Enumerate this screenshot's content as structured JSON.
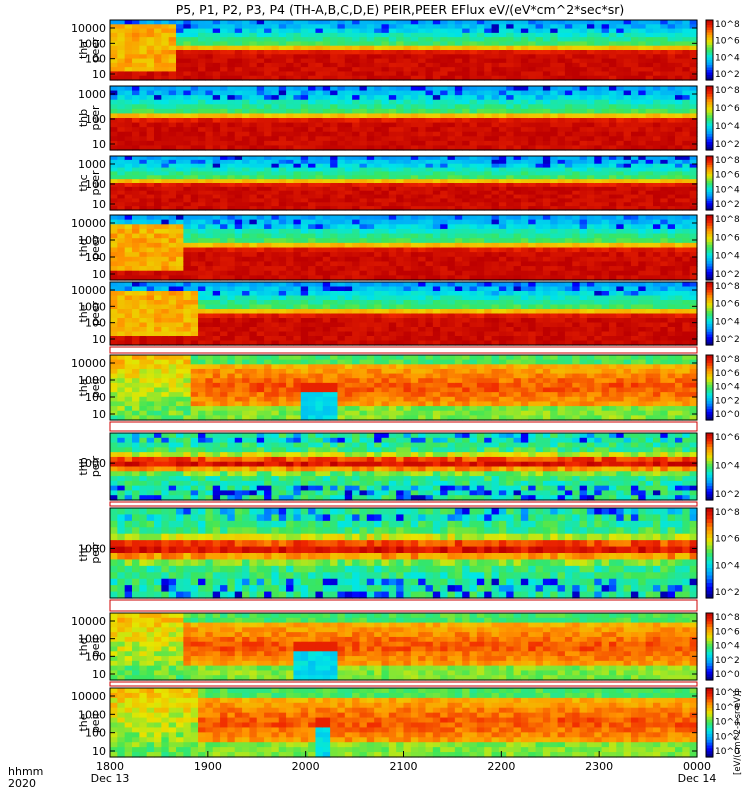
{
  "chart_data": {
    "type": "heatmap",
    "title": "P5, P1, P2, P3, P4 (TH-A,B,C,D,E) PEIR,PEER EFlux eV/(eV*cm^2*sec*sr)",
    "colorbar_label": "[eV/(cm^2-s-sr-eV)]",
    "x_axis": {
      "range_minutes": [
        0,
        360
      ],
      "ticks": [
        {
          "minute": 0,
          "label": "1800",
          "date": "Dec 13"
        },
        {
          "minute": 60,
          "label": "1900"
        },
        {
          "minute": 120,
          "label": "2000"
        },
        {
          "minute": 180,
          "label": "2100"
        },
        {
          "minute": 240,
          "label": "2200"
        },
        {
          "minute": 300,
          "label": "2300"
        },
        {
          "minute": 360,
          "label": "0000",
          "date": "Dec 14"
        }
      ],
      "corner_label": "hhmm",
      "corner_year": "2020"
    },
    "panels": [
      {
        "probe": "tha",
        "product": "peer",
        "label_a": "tha",
        "label_b": "peer",
        "kind": "peer",
        "yticks": [
          "10",
          "100",
          "1000",
          "10000"
        ],
        "cbar_ticks": [
          "10^8",
          "10^6",
          "10^4",
          "10^2"
        ],
        "events": [
          {
            "t0": 0,
            "t1": 40,
            "level": 0.9
          }
        ],
        "dip": null
      },
      {
        "probe": "thb",
        "product": "peer",
        "label_a": "thb",
        "label_b": "peer",
        "kind": "peer",
        "yticks": [
          "10",
          "100",
          "1000"
        ],
        "cbar_ticks": [
          "10^8",
          "10^6",
          "10^4",
          "10^2"
        ],
        "events": [],
        "dip": null
      },
      {
        "probe": "thc",
        "product": "peer",
        "label_a": "thc",
        "label_b": "peer",
        "kind": "peer",
        "yticks": [
          "10",
          "100",
          "1000"
        ],
        "cbar_ticks": [
          "10^8",
          "10^6",
          "10^4",
          "10^2"
        ],
        "events": [],
        "dip": null
      },
      {
        "probe": "thd",
        "product": "peer",
        "label_a": "thd",
        "label_b": "peer",
        "kind": "peer",
        "yticks": [
          "10",
          "100",
          "1000",
          "10000"
        ],
        "cbar_ticks": [
          "10^8",
          "10^6",
          "10^4",
          "10^2"
        ],
        "events": [
          {
            "t0": 0,
            "t1": 45,
            "level": 0.85
          }
        ],
        "dip": null
      },
      {
        "probe": "the",
        "product": "peer",
        "label_a": "the",
        "label_b": "peer",
        "kind": "peer",
        "yticks": [
          "10",
          "100",
          "1000",
          "10000"
        ],
        "cbar_ticks": [
          "10^8",
          "10^6",
          "10^4",
          "10^2"
        ],
        "events": [
          {
            "t0": 0,
            "t1": 55,
            "level": 0.85
          }
        ],
        "dip": null
      },
      {
        "probe": "tha",
        "product": "peir",
        "label_a": "tha",
        "label_b": "peir",
        "kind": "peir",
        "yticks": [
          "10",
          "100",
          "1000",
          "10000"
        ],
        "cbar_ticks": [
          "10^8",
          "10^6",
          "10^4",
          "10^2",
          "10^0"
        ],
        "events": [],
        "dip": {
          "t0": 115,
          "t1": 140,
          "cool_t0": 0,
          "cool_t1": 50
        }
      },
      {
        "probe": "thb",
        "product": "peir",
        "label_a": "thb",
        "label_b": "peir",
        "kind": "peir_band",
        "yticks": [
          "1000"
        ],
        "cbar_ticks": [
          "10^6",
          "10^4",
          "10^2"
        ],
        "events": [],
        "dip": null
      },
      {
        "probe": "thc",
        "product": "peir",
        "label_a": "thc",
        "label_b": "peir",
        "kind": "peir_band",
        "yticks": [
          "1000"
        ],
        "cbar_ticks": [
          "10^8",
          "10^6",
          "10^4",
          "10^2"
        ],
        "events": [],
        "dip": null
      },
      {
        "probe": "thd",
        "product": "peir",
        "label_a": "thd",
        "label_b": "peir",
        "kind": "peir",
        "yticks": [
          "10",
          "100",
          "1000",
          "10000"
        ],
        "cbar_ticks": [
          "10^8",
          "10^6",
          "10^4",
          "10^2",
          "10^0"
        ],
        "events": [],
        "dip": {
          "t0": 112,
          "t1": 140,
          "cool_t0": 0,
          "cool_t1": 45
        }
      },
      {
        "probe": "the",
        "product": "peir",
        "label_a": "the",
        "label_b": "peir",
        "kind": "peir",
        "yticks": [
          "10",
          "100",
          "1000",
          "10000"
        ],
        "cbar_ticks": [
          "10^8",
          "10^6",
          "10^4",
          "10^2",
          "10^0"
        ],
        "events": [],
        "dip": {
          "t0": 125,
          "t1": 135,
          "cool_t0": 0,
          "cool_t1": 55
        }
      }
    ]
  }
}
